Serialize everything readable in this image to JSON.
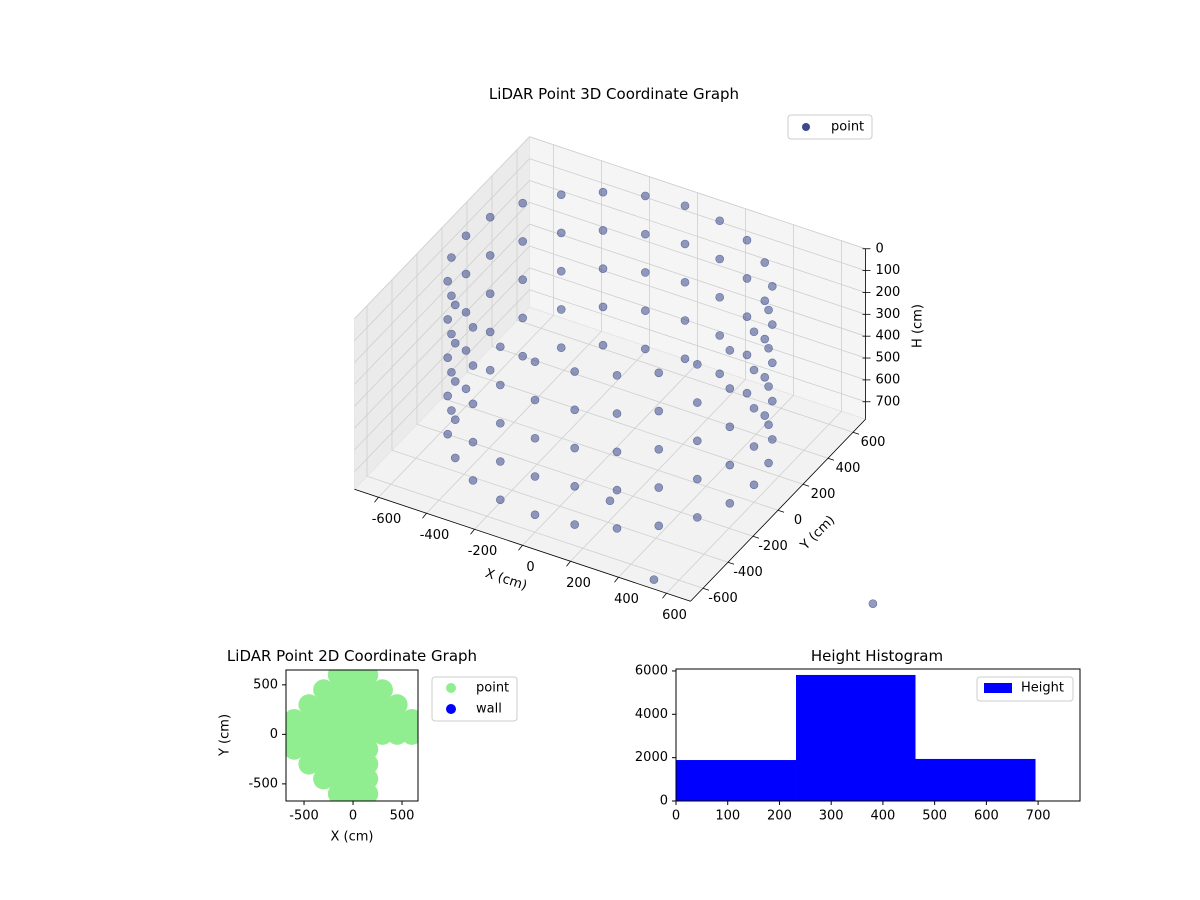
{
  "chart_data": [
    {
      "type": "scatter3d",
      "title": "LiDAR Point 3D Coordinate Graph",
      "xlabel": "X (cm)",
      "ylabel": "Y (cm)",
      "zlabel": "H (cm)",
      "xlim": [
        -700,
        700
      ],
      "ylim": [
        -700,
        700
      ],
      "zlim": [
        0,
        780
      ],
      "z_inverted": true,
      "xticks": [
        -600,
        -400,
        -200,
        0,
        200,
        400,
        600
      ],
      "yticks": [
        -600,
        -400,
        -200,
        0,
        200,
        400,
        600
      ],
      "zticks": [
        0,
        100,
        200,
        300,
        400,
        500,
        600,
        700
      ],
      "grid": true,
      "legend": "upper right",
      "series": [
        {
          "name": "point",
          "color": "#3b4a8a",
          "x": [
            600,
            580,
            520,
            424,
            300,
            155,
            0,
            -155,
            -300,
            -424,
            -520,
            -580,
            -600,
            -580,
            -520,
            -424,
            -300,
            -155,
            0,
            155,
            300,
            424,
            520,
            580,
            600,
            580,
            520,
            424,
            300,
            155,
            0,
            -155,
            -300,
            -424,
            -520,
            -580,
            -600,
            -580,
            -520,
            -424,
            -300,
            -155,
            0,
            155,
            300,
            424,
            520,
            580,
            600,
            580,
            520,
            424,
            300,
            155,
            0,
            -155,
            -300,
            -424,
            -520,
            -580,
            -600,
            -580,
            -520,
            -424,
            -300,
            -155,
            0,
            155,
            300,
            424,
            520,
            580,
            600,
            580,
            520,
            424,
            300,
            155,
            0,
            -155,
            -300,
            -424,
            -520,
            -580,
            -600,
            -580,
            -520,
            -424,
            -300,
            -155,
            0,
            155,
            300,
            424,
            520,
            580,
            600,
            580,
            520,
            424,
            300,
            155,
            0,
            -155,
            -300,
            -424,
            -520,
            -580,
            -600,
            -580,
            -520,
            -424,
            -300,
            -155,
            0,
            155,
            300,
            424,
            520,
            580,
            519,
            141,
            1283
          ],
          "y": [
            0,
            155,
            300,
            424,
            520,
            580,
            600,
            580,
            520,
            424,
            300,
            155,
            0,
            -155,
            -300,
            -424,
            -520,
            -580,
            -600,
            -580,
            -520,
            -424,
            -300,
            -155,
            0,
            155,
            300,
            424,
            520,
            580,
            600,
            580,
            520,
            424,
            300,
            155,
            0,
            -155,
            -300,
            -424,
            -520,
            -580,
            -600,
            -580,
            -520,
            -424,
            -300,
            -155,
            0,
            155,
            300,
            424,
            520,
            580,
            600,
            580,
            520,
            424,
            300,
            155,
            0,
            -155,
            -300,
            -424,
            -520,
            -580,
            -600,
            -580,
            -520,
            -424,
            -300,
            -155,
            0,
            155,
            300,
            424,
            520,
            580,
            600,
            580,
            520,
            424,
            300,
            155,
            0,
            -155,
            -300,
            -424,
            -520,
            -580,
            -600,
            -580,
            -520,
            -424,
            -300,
            -155,
            0,
            155,
            300,
            424,
            520,
            580,
            600,
            580,
            520,
            424,
            300,
            155,
            0,
            -155,
            -300,
            -424,
            -520,
            -580,
            -600,
            -580,
            -520,
            -424,
            -300,
            -155,
            -645,
            -271,
            -360
          ],
          "z": [
            0,
            0,
            0,
            0,
            0,
            0,
            0,
            0,
            0,
            0,
            0,
            0,
            0,
            0,
            0,
            0,
            0,
            0,
            0,
            0,
            0,
            0,
            0,
            0,
            175,
            175,
            175,
            175,
            175,
            175,
            175,
            175,
            175,
            175,
            175,
            175,
            175,
            175,
            175,
            175,
            175,
            175,
            175,
            175,
            175,
            175,
            175,
            175,
            350,
            350,
            350,
            350,
            350,
            350,
            350,
            350,
            350,
            350,
            350,
            350,
            350,
            350,
            350,
            350,
            350,
            350,
            350,
            350,
            350,
            350,
            350,
            350,
            525,
            525,
            525,
            525,
            525,
            525,
            525,
            525,
            525,
            525,
            525,
            525,
            525,
            525,
            525,
            525,
            525,
            525,
            525,
            525,
            525,
            525,
            525,
            525,
            700,
            700,
            700,
            700,
            700,
            700,
            700,
            700,
            700,
            700,
            700,
            700,
            700,
            700,
            700,
            700,
            700,
            700,
            700,
            700,
            700,
            700,
            700,
            700,
            780,
            780,
            780
          ]
        }
      ]
    },
    {
      "type": "scatter",
      "title": "LiDAR Point 2D Coordinate Graph",
      "xlabel": "X (cm)",
      "ylabel": "Y (cm)",
      "xlim": [
        -684,
        663
      ],
      "ylim": [
        -673,
        650
      ],
      "xticks": [
        -500,
        0,
        500
      ],
      "yticks": [
        -500,
        0,
        500
      ],
      "legend": "outside right",
      "series": [
        {
          "name": "point",
          "color": "#90ee90",
          "x": [
            -150,
            0,
            150,
            -300,
            -150,
            0,
            150,
            300,
            -450,
            -300,
            -150,
            0,
            150,
            300,
            450,
            -600,
            -450,
            -300,
            -150,
            0,
            150,
            300,
            450,
            600,
            -600,
            -450,
            -300,
            -150,
            0,
            150,
            300,
            450,
            600,
            -600,
            -450,
            -300,
            -150,
            0,
            150,
            -450,
            -300,
            -150,
            0,
            150,
            -300,
            -150,
            0,
            150,
            -150,
            0,
            150
          ],
          "y": [
            600,
            600,
            600,
            450,
            450,
            450,
            450,
            450,
            300,
            300,
            300,
            300,
            300,
            300,
            300,
            150,
            150,
            150,
            150,
            150,
            150,
            150,
            150,
            150,
            0,
            0,
            0,
            0,
            0,
            0,
            0,
            0,
            0,
            -150,
            -150,
            -150,
            -150,
            -150,
            -150,
            -300,
            -300,
            -300,
            -300,
            -300,
            -450,
            -450,
            -450,
            -450,
            -600,
            -600,
            -600
          ]
        },
        {
          "name": "wall",
          "color": "#0000ff",
          "x": [],
          "y": []
        }
      ]
    },
    {
      "type": "histogram",
      "title": "Height Histogram",
      "bins": [
        0,
        232,
        463,
        695
      ],
      "xlim": [
        0,
        781
      ],
      "ylim": [
        0,
        6090
      ],
      "xticks": [
        0,
        100,
        200,
        300,
        400,
        500,
        600,
        700
      ],
      "yticks": [
        0,
        2000,
        4000,
        6000
      ],
      "legend": "upper right",
      "series": [
        {
          "name": "Height",
          "color": "#0000ff",
          "values": [
            1890,
            5815,
            1940
          ]
        }
      ]
    }
  ]
}
